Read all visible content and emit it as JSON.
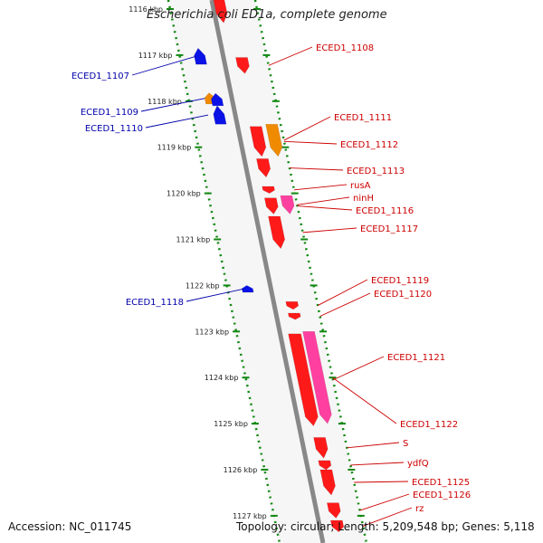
{
  "title": "Escherichia coli ED1a, complete genome",
  "footer": {
    "accession": "Accession: NC_011745",
    "summary": "Topology: circular; Length: 5,209,548 bp; Genes: 5,118"
  },
  "colors": {
    "red_gene": "#ff1a1a",
    "blue_gene": "#0a12e6",
    "orange_gene": "#f08a00",
    "pink_gene": "#ff40a0",
    "label_red": "#cc0000",
    "label_blue": "#0000aa",
    "backbone": "#888888",
    "tick_green": "#118811"
  },
  "ticks": [
    {
      "kbp": 1116,
      "label": "1116 kbp"
    },
    {
      "kbp": 1117,
      "label": "1117 kbp"
    },
    {
      "kbp": 1118,
      "label": "1118 kbp"
    },
    {
      "kbp": 1119,
      "label": "1119 kbp"
    },
    {
      "kbp": 1120,
      "label": "1120 kbp"
    },
    {
      "kbp": 1121,
      "label": "1121 kbp"
    },
    {
      "kbp": 1122,
      "label": "1122 kbp"
    },
    {
      "kbp": 1123,
      "label": "1123 kbp"
    },
    {
      "kbp": 1124,
      "label": "1124 kbp"
    },
    {
      "kbp": 1125,
      "label": "1125 kbp"
    },
    {
      "kbp": 1126,
      "label": "1126 kbp"
    },
    {
      "kbp": 1127,
      "label": "1127 kbp"
    }
  ],
  "reverse_genes": [
    {
      "name": "ECED1_1107",
      "start": 1116.85,
      "end": 1117.2,
      "color": "blue"
    },
    {
      "name": "ECED1_1109",
      "start": 1117.82,
      "end": 1118.06,
      "color": "orange"
    },
    {
      "name": "",
      "start": 1117.83,
      "end": 1118.1,
      "color": "blue"
    },
    {
      "name": "ECED1_1110",
      "start": 1118.1,
      "end": 1118.5,
      "color": "blue"
    },
    {
      "name": "ECED1_1118",
      "start": 1122.0,
      "end": 1122.15,
      "color": "blue"
    }
  ],
  "forward_genes": [
    {
      "name": "",
      "start": 1115.8,
      "end": 1116.3,
      "color": "red"
    },
    {
      "name": "ECED1_1108",
      "start": 1117.05,
      "end": 1117.4,
      "color": "red"
    },
    {
      "name": "ECED1_1111",
      "start": 1118.5,
      "end": 1119.2,
      "color": "orange"
    },
    {
      "name": "ECED1_1112",
      "start": 1118.55,
      "end": 1119.2,
      "color": "red"
    },
    {
      "name": "ECED1_1113",
      "start": 1119.25,
      "end": 1119.65,
      "color": "red"
    },
    {
      "name": "rusA",
      "start": 1119.85,
      "end": 1120.0,
      "color": "red"
    },
    {
      "name": "ninH",
      "start": 1120.05,
      "end": 1120.45,
      "color": "pink"
    },
    {
      "name": "ECED1_1116",
      "start": 1120.1,
      "end": 1120.45,
      "color": "red"
    },
    {
      "name": "ECED1_1117",
      "start": 1120.5,
      "end": 1121.2,
      "color": "red"
    },
    {
      "name": "ECED1_1119",
      "start": 1122.35,
      "end": 1122.52,
      "color": "red"
    },
    {
      "name": "ECED1_1120",
      "start": 1122.6,
      "end": 1122.74,
      "color": "red"
    },
    {
      "name": "ECED1_1121",
      "start": 1123.05,
      "end": 1125.05,
      "color": "red"
    },
    {
      "name": "ECED1_1122",
      "start": 1123.0,
      "end": 1125.0,
      "color": "pink"
    },
    {
      "name": "S",
      "start": 1125.3,
      "end": 1125.75,
      "color": "red"
    },
    {
      "name": "ydfQ",
      "start": 1125.8,
      "end": 1126.0,
      "color": "red"
    },
    {
      "name": "ECED1_1125",
      "start": 1126.0,
      "end": 1126.55,
      "color": "red"
    },
    {
      "name": "ECED1_1126",
      "start": 1126.72,
      "end": 1127.05,
      "color": "red"
    },
    {
      "name": "rz",
      "start": 1127.1,
      "end": 1127.35,
      "color": "red"
    }
  ]
}
